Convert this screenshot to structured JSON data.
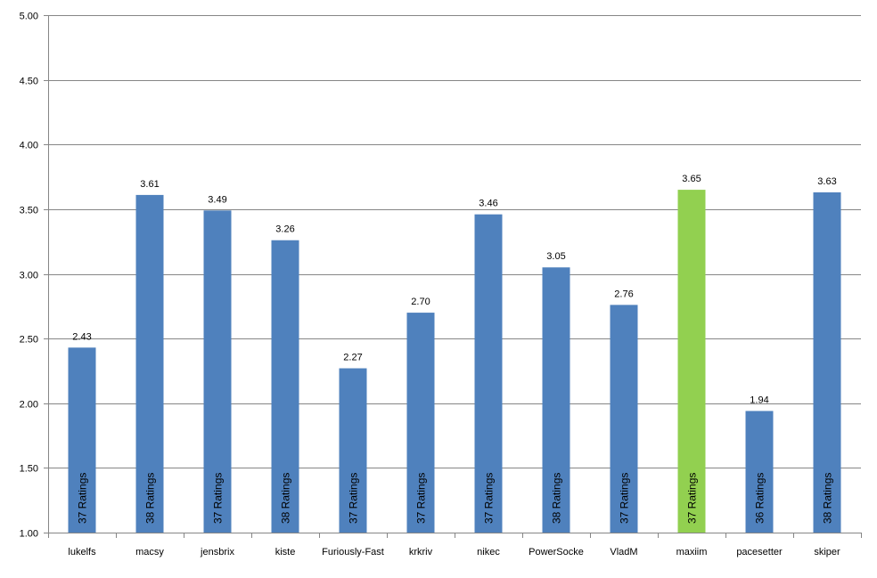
{
  "chart_data": {
    "type": "bar",
    "categories": [
      "lukelfs",
      "macsy",
      "jensbrix",
      "kiste",
      "Furiously-Fast",
      "krkriv",
      "nikec",
      "PowerSocke",
      "VladM",
      "maxiim",
      "pacesetter",
      "skiper"
    ],
    "series": [
      {
        "values": [
          2.43,
          3.61,
          3.49,
          3.26,
          2.27,
          2.7,
          3.46,
          3.05,
          2.76,
          3.65,
          1.94,
          3.63
        ],
        "value_labels": [
          "2.43",
          "3.61",
          "3.49",
          "3.26",
          "2.27",
          "2.70",
          "3.46",
          "3.05",
          "2.76",
          "3.65",
          "1.94",
          "3.63"
        ],
        "bar_labels": [
          "37 Ratings",
          "38 Ratings",
          "37 Ratings",
          "38 Ratings",
          "37 Ratings",
          "37 Ratings",
          "37 Ratings",
          "38 Ratings",
          "37 Ratings",
          "37 Ratings",
          "36 Ratings",
          "38 Ratings"
        ]
      }
    ],
    "highlight_index": 9,
    "colors": {
      "bar": "#4f81bd",
      "highlight": "#92d050",
      "grid": "#868686",
      "axis": "#868686",
      "text": "#000000"
    },
    "ylim": [
      1.0,
      5.0
    ],
    "y_ticks": [
      "1.00",
      "1.50",
      "2.00",
      "2.50",
      "3.00",
      "3.50",
      "4.00",
      "4.50",
      "5.00"
    ],
    "y_tick_values": [
      1.0,
      1.5,
      2.0,
      2.5,
      3.0,
      3.5,
      4.0,
      4.5,
      5.0
    ],
    "grid": true,
    "title": "",
    "xlabel": "",
    "ylabel": ""
  }
}
